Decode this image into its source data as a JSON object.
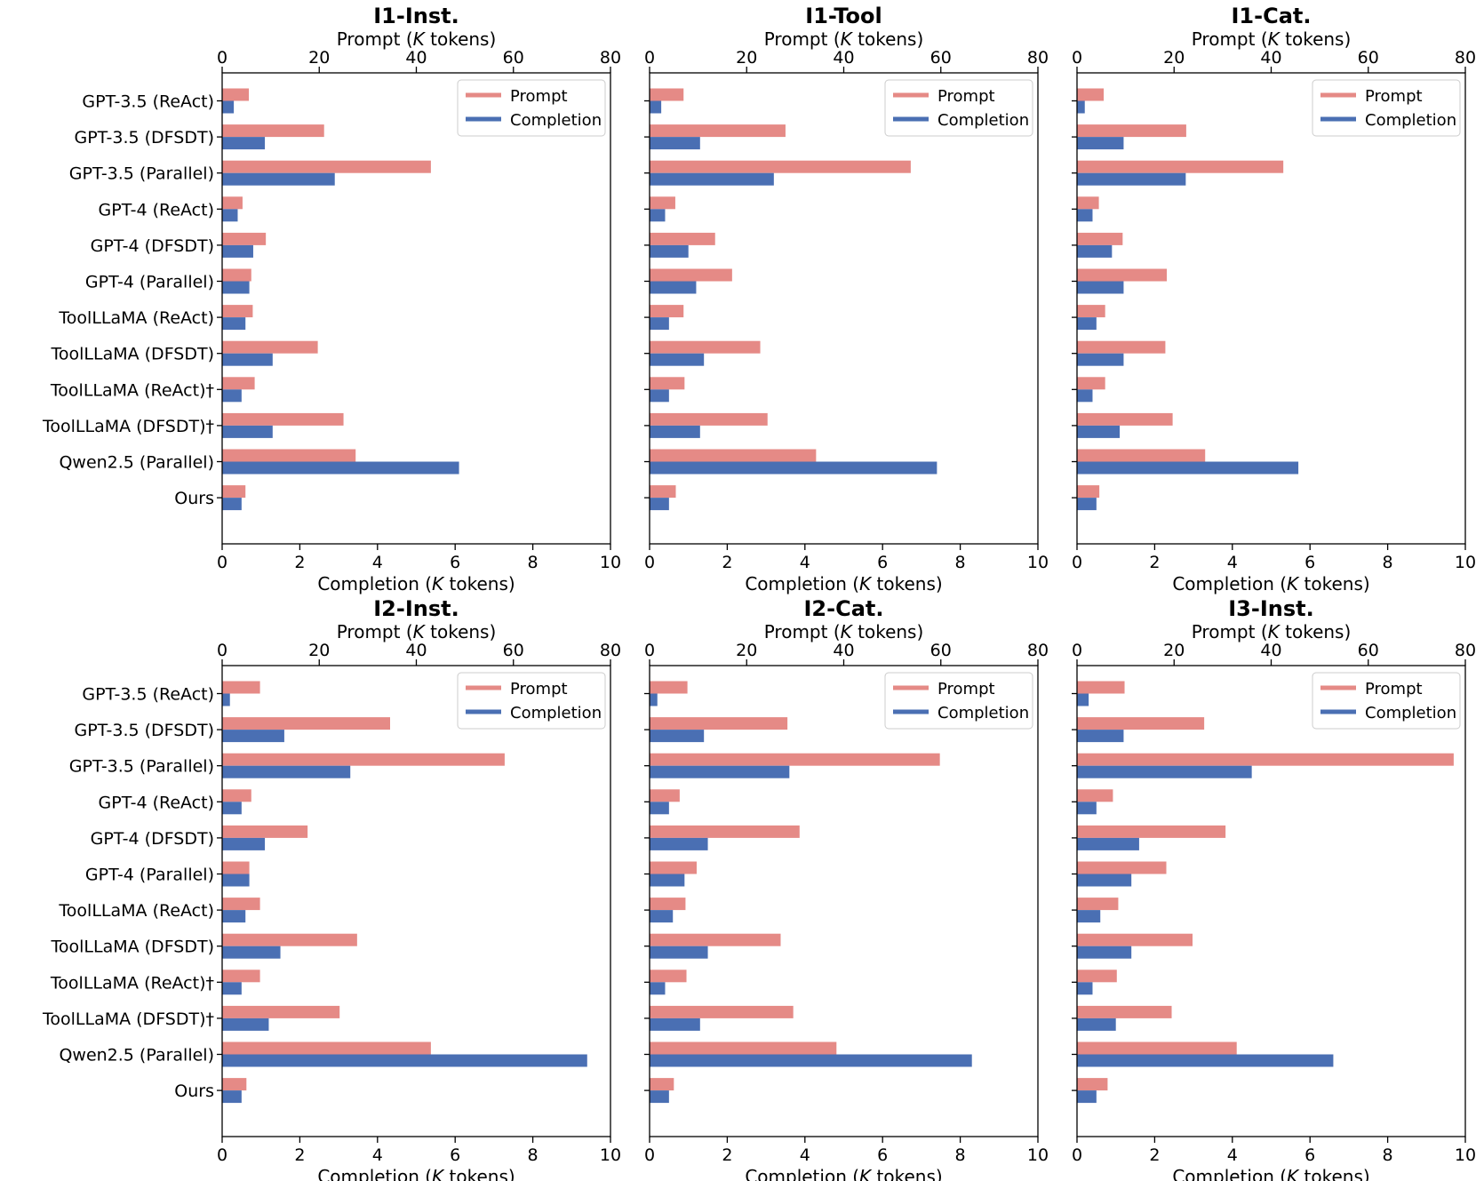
{
  "colors": {
    "prompt": "#e58a86",
    "completion": "#4a6fb3"
  },
  "chart_data": [
    {
      "type": "bar",
      "orientation": "horizontal-grouped",
      "title": "I1-Inst.",
      "top_axis": {
        "label_prefix": "Prompt (",
        "label_italic": "K",
        "label_suffix": " tokens)",
        "range": [
          0,
          80
        ],
        "ticks": [
          "0",
          "20",
          "40",
          "60",
          "80"
        ]
      },
      "bottom_axis": {
        "label_prefix": "Completion (",
        "label_italic": "K",
        "label_suffix": " tokens)",
        "range": [
          0,
          10
        ],
        "ticks": [
          "0",
          "2",
          "4",
          "6",
          "8",
          "10"
        ]
      },
      "categories": [
        "GPT-3.5 (ReAct)",
        "GPT-3.5 (DFSDT)",
        "GPT-3.5 (Parallel)",
        "GPT-4 (ReAct)",
        "GPT-4 (DFSDT)",
        "GPT-4 (Parallel)",
        "ToolLLaMA (ReAct)",
        "ToolLLaMA (DFSDT)",
        "ToolLLaMA (ReAct)†",
        "ToolLLaMA (DFSDT)†",
        "Qwen2.5 (Parallel)",
        "Ours"
      ],
      "show_category_labels": true,
      "legend": [
        "Prompt",
        "Completion"
      ],
      "legend_position": "top-right",
      "series": [
        {
          "name": "Prompt",
          "axis": "top",
          "values": [
            5.5,
            21,
            43,
            4.2,
            9,
            6,
            6.3,
            19.7,
            6.7,
            25,
            27.5,
            4.8
          ]
        },
        {
          "name": "Completion",
          "axis": "bottom",
          "values": [
            0.3,
            1.1,
            2.9,
            0.4,
            0.8,
            0.7,
            0.6,
            1.3,
            0.5,
            1.3,
            6.1,
            0.5
          ]
        }
      ]
    },
    {
      "type": "bar",
      "orientation": "horizontal-grouped",
      "title": "I1-Tool",
      "top_axis": {
        "label_prefix": "Prompt (",
        "label_italic": "K",
        "label_suffix": " tokens)",
        "range": [
          0,
          80
        ],
        "ticks": [
          "0",
          "20",
          "40",
          "60",
          "80"
        ]
      },
      "bottom_axis": {
        "label_prefix": "Completion (",
        "label_italic": "K",
        "label_suffix": " tokens)",
        "range": [
          0,
          10
        ],
        "ticks": [
          "0",
          "2",
          "4",
          "6",
          "8",
          "10"
        ]
      },
      "categories": [
        "GPT-3.5 (ReAct)",
        "GPT-3.5 (DFSDT)",
        "GPT-3.5 (Parallel)",
        "GPT-4 (ReAct)",
        "GPT-4 (DFSDT)",
        "GPT-4 (Parallel)",
        "ToolLLaMA (ReAct)",
        "ToolLLaMA (DFSDT)",
        "ToolLLaMA (ReAct)†",
        "ToolLLaMA (DFSDT)†",
        "Qwen2.5 (Parallel)",
        "Ours"
      ],
      "show_category_labels": false,
      "legend": [
        "Prompt",
        "Completion"
      ],
      "legend_position": "top-right",
      "series": [
        {
          "name": "Prompt",
          "axis": "top",
          "values": [
            7,
            28,
            53.8,
            5.3,
            13.5,
            17,
            7,
            22.8,
            7.2,
            24.3,
            34.3,
            5.4
          ]
        },
        {
          "name": "Completion",
          "axis": "bottom",
          "values": [
            0.3,
            1.3,
            3.2,
            0.4,
            1.0,
            1.2,
            0.5,
            1.4,
            0.5,
            1.3,
            7.4,
            0.5
          ]
        }
      ]
    },
    {
      "type": "bar",
      "orientation": "horizontal-grouped",
      "title": "I1-Cat.",
      "top_axis": {
        "label_prefix": "Prompt (",
        "label_italic": "K",
        "label_suffix": " tokens)",
        "range": [
          0,
          80
        ],
        "ticks": [
          "0",
          "20",
          "40",
          "60",
          "80"
        ]
      },
      "bottom_axis": {
        "label_prefix": "Completion (",
        "label_italic": "K",
        "label_suffix": " tokens)",
        "range": [
          0,
          10
        ],
        "ticks": [
          "0",
          "2",
          "4",
          "6",
          "8",
          "10"
        ]
      },
      "categories": [
        "GPT-3.5 (ReAct)",
        "GPT-3.5 (DFSDT)",
        "GPT-3.5 (Parallel)",
        "GPT-4 (ReAct)",
        "GPT-4 (DFSDT)",
        "GPT-4 (Parallel)",
        "ToolLLaMA (ReAct)",
        "ToolLLaMA (DFSDT)",
        "ToolLLaMA (ReAct)†",
        "ToolLLaMA (DFSDT)†",
        "Qwen2.5 (Parallel)",
        "Ours"
      ],
      "show_category_labels": false,
      "legend": [
        "Prompt",
        "Completion"
      ],
      "legend_position": "top-right",
      "series": [
        {
          "name": "Prompt",
          "axis": "top",
          "values": [
            5.5,
            22.5,
            42.5,
            4.5,
            9.4,
            18.5,
            5.8,
            18.2,
            5.8,
            19.7,
            26.4,
            4.6
          ]
        },
        {
          "name": "Completion",
          "axis": "bottom",
          "values": [
            0.2,
            1.2,
            2.8,
            0.4,
            0.9,
            1.2,
            0.5,
            1.2,
            0.4,
            1.1,
            5.7,
            0.5
          ]
        }
      ]
    },
    {
      "type": "bar",
      "orientation": "horizontal-grouped",
      "title": "I2-Inst.",
      "top_axis": {
        "label_prefix": "Prompt (",
        "label_italic": "K",
        "label_suffix": " tokens)",
        "range": [
          0,
          80
        ],
        "ticks": [
          "0",
          "20",
          "40",
          "60",
          "80"
        ]
      },
      "bottom_axis": {
        "label_prefix": "Completion (",
        "label_italic": "K",
        "label_suffix": " tokens)",
        "range": [
          0,
          10
        ],
        "ticks": [
          "0",
          "2",
          "4",
          "6",
          "8",
          "10"
        ]
      },
      "categories": [
        "GPT-3.5 (ReAct)",
        "GPT-3.5 (DFSDT)",
        "GPT-3.5 (Parallel)",
        "GPT-4 (ReAct)",
        "GPT-4 (DFSDT)",
        "GPT-4 (Parallel)",
        "ToolLLaMA (ReAct)",
        "ToolLLaMA (DFSDT)",
        "ToolLLaMA (ReAct)†",
        "ToolLLaMA (DFSDT)†",
        "Qwen2.5 (Parallel)",
        "Ours"
      ],
      "show_category_labels": true,
      "legend": [
        "Prompt",
        "Completion"
      ],
      "legend_position": "top-right",
      "series": [
        {
          "name": "Prompt",
          "axis": "top",
          "values": [
            7.8,
            34.6,
            58.2,
            6,
            17.6,
            5.6,
            7.8,
            27.8,
            7.8,
            24.2,
            43,
            5
          ]
        },
        {
          "name": "Completion",
          "axis": "bottom",
          "values": [
            0.2,
            1.6,
            3.3,
            0.5,
            1.1,
            0.7,
            0.6,
            1.5,
            0.5,
            1.2,
            9.4,
            0.5
          ]
        }
      ]
    },
    {
      "type": "bar",
      "orientation": "horizontal-grouped",
      "title": "I2-Cat.",
      "top_axis": {
        "label_prefix": "Prompt (",
        "label_italic": "K",
        "label_suffix": " tokens)",
        "range": [
          0,
          80
        ],
        "ticks": [
          "0",
          "20",
          "40",
          "60",
          "80"
        ]
      },
      "bottom_axis": {
        "label_prefix": "Completion (",
        "label_italic": "K",
        "label_suffix": " tokens)",
        "range": [
          0,
          10
        ],
        "ticks": [
          "0",
          "2",
          "4",
          "6",
          "8",
          "10"
        ]
      },
      "categories": [
        "GPT-3.5 (ReAct)",
        "GPT-3.5 (DFSDT)",
        "GPT-3.5 (Parallel)",
        "GPT-4 (ReAct)",
        "GPT-4 (DFSDT)",
        "GPT-4 (Parallel)",
        "ToolLLaMA (ReAct)",
        "ToolLLaMA (DFSDT)",
        "ToolLLaMA (ReAct)†",
        "ToolLLaMA (DFSDT)†",
        "Qwen2.5 (Parallel)",
        "Ours"
      ],
      "show_category_labels": false,
      "legend": [
        "Prompt",
        "Completion"
      ],
      "legend_position": "top-right",
      "series": [
        {
          "name": "Prompt",
          "axis": "top",
          "values": [
            7.8,
            28.4,
            59.8,
            6.2,
            30.9,
            9.7,
            7.4,
            27,
            7.6,
            29.6,
            38.5,
            5
          ]
        },
        {
          "name": "Completion",
          "axis": "bottom",
          "values": [
            0.2,
            1.4,
            3.6,
            0.5,
            1.5,
            0.9,
            0.6,
            1.5,
            0.4,
            1.3,
            8.3,
            0.5
          ]
        }
      ]
    },
    {
      "type": "bar",
      "orientation": "horizontal-grouped",
      "title": "I3-Inst.",
      "top_axis": {
        "label_prefix": "Prompt (",
        "label_italic": "K",
        "label_suffix": " tokens)",
        "range": [
          0,
          80
        ],
        "ticks": [
          "0",
          "20",
          "40",
          "60",
          "80"
        ]
      },
      "bottom_axis": {
        "label_prefix": "Completion (",
        "label_italic": "K",
        "label_suffix": " tokens)",
        "range": [
          0,
          10
        ],
        "ticks": [
          "0",
          "2",
          "4",
          "6",
          "8",
          "10"
        ]
      },
      "categories": [
        "GPT-3.5 (ReAct)",
        "GPT-3.5 (DFSDT)",
        "GPT-3.5 (Parallel)",
        "GPT-4 (ReAct)",
        "GPT-4 (DFSDT)",
        "GPT-4 (Parallel)",
        "ToolLLaMA (ReAct)",
        "ToolLLaMA (DFSDT)",
        "ToolLLaMA (ReAct)†",
        "ToolLLaMA (DFSDT)†",
        "Qwen2.5 (Parallel)",
        "Ours"
      ],
      "show_category_labels": false,
      "legend": [
        "Prompt",
        "Completion"
      ],
      "legend_position": "top-right",
      "series": [
        {
          "name": "Prompt",
          "axis": "top",
          "values": [
            9.8,
            26.2,
            77.6,
            7.4,
            30.6,
            18.4,
            8.5,
            23.8,
            8.2,
            19.5,
            32.9,
            6.3
          ]
        },
        {
          "name": "Completion",
          "axis": "bottom",
          "values": [
            0.3,
            1.2,
            4.5,
            0.5,
            1.6,
            1.4,
            0.6,
            1.4,
            0.4,
            1.0,
            6.6,
            0.5
          ]
        }
      ]
    }
  ]
}
